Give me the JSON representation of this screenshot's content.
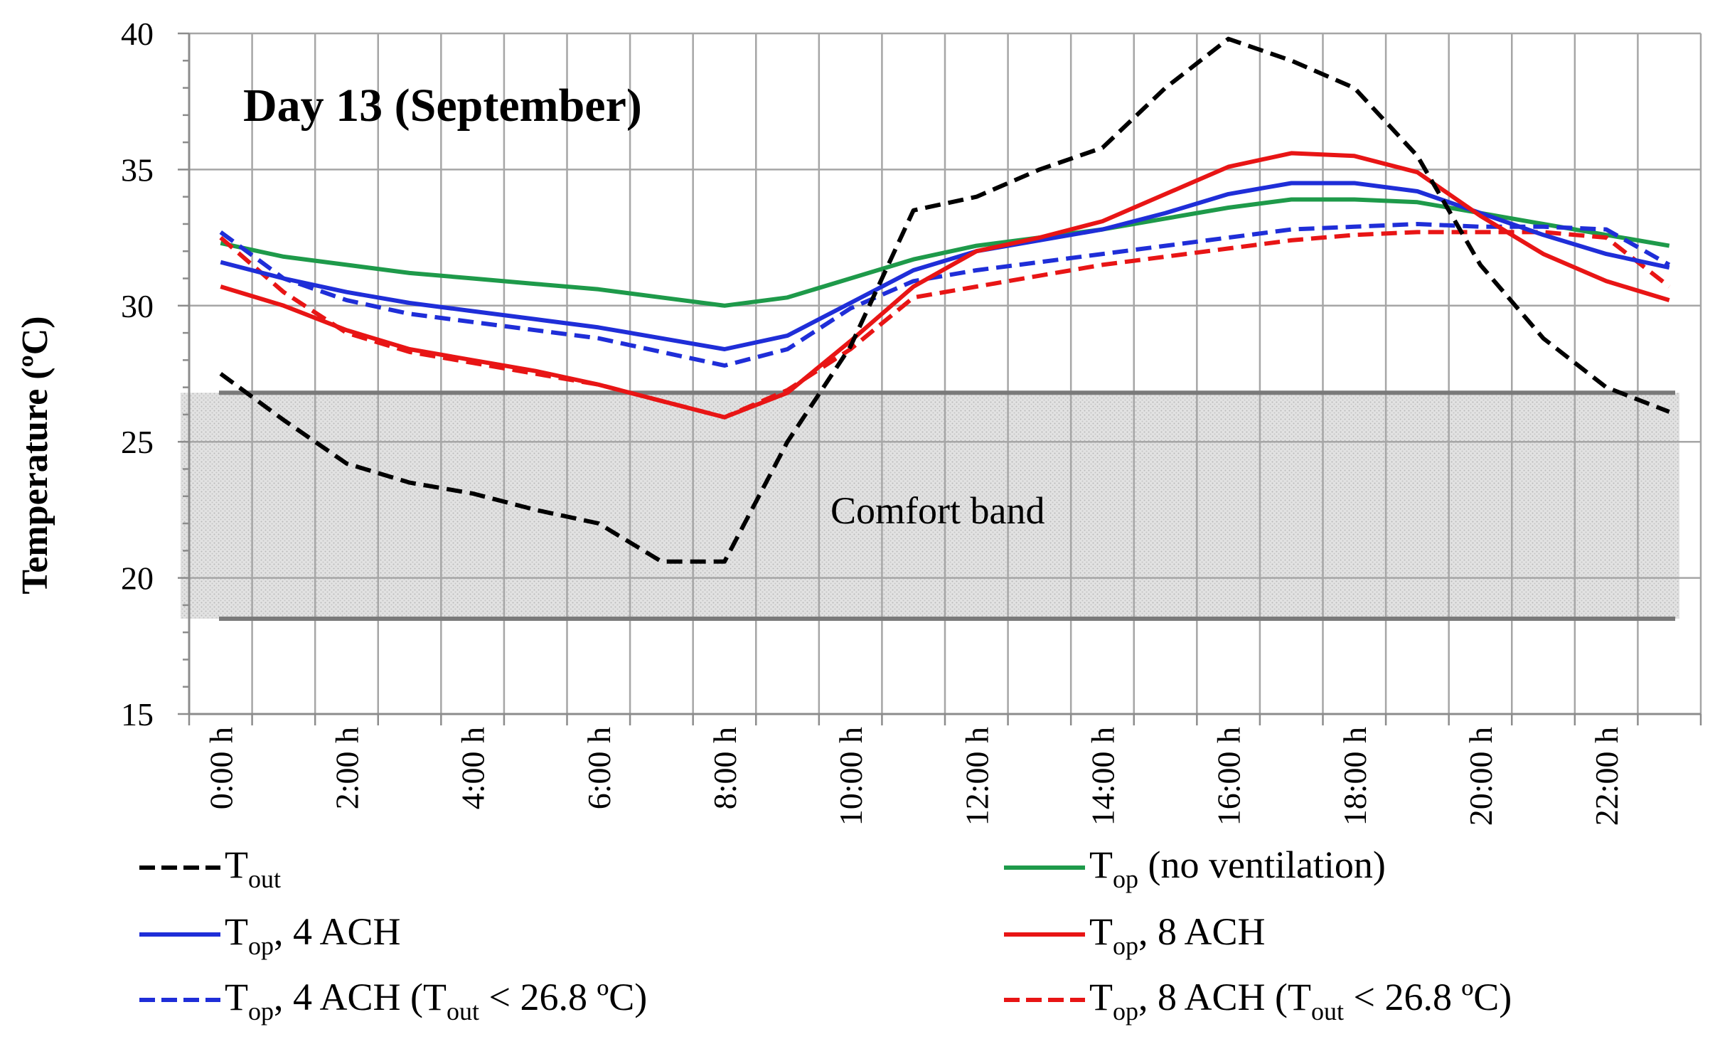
{
  "chart_data": {
    "type": "line",
    "title": "Day 13 (September)",
    "ylabel": "Temperature (ºC)",
    "xlabel": "",
    "ylim": [
      15,
      40
    ],
    "yticks": [
      "15",
      "20",
      "25",
      "30",
      "35",
      "40"
    ],
    "xtick_labels": [
      "0:00 h",
      "2:00 h",
      "4:00 h",
      "6:00 h",
      "8:00 h",
      "10:00 h",
      "12:00 h",
      "14:00 h",
      "16:00 h",
      "18:00 h",
      "20:00 h",
      "22:00 h"
    ],
    "grid": true,
    "comfort_band": {
      "label": "Comfort band",
      "lower": 18.5,
      "upper": 26.8
    },
    "x": [
      0,
      1,
      2,
      3,
      4,
      5,
      6,
      7,
      8,
      9,
      10,
      11,
      12,
      13,
      14,
      15,
      16,
      17,
      18,
      19,
      20,
      21,
      22,
      23
    ],
    "series": [
      {
        "id": "tout",
        "name": "T",
        "sub": "out",
        "suffix": "",
        "color": "#000000",
        "dash": "dashed",
        "values": [
          27.5,
          25.8,
          24.2,
          23.5,
          23.1,
          22.5,
          22.0,
          20.6,
          20.6,
          25.0,
          28.5,
          33.5,
          34.0,
          35.0,
          35.8,
          38.0,
          39.8,
          39.0,
          38.0,
          35.5,
          31.5,
          28.8,
          27.0,
          26.1
        ]
      },
      {
        "id": "nv",
        "name": "T",
        "sub": "op",
        "suffix": " (no ventilation)",
        "color": "#1e9a4a",
        "dash": "solid",
        "values": [
          32.3,
          31.8,
          31.5,
          31.2,
          31.0,
          30.8,
          30.6,
          30.3,
          30.0,
          30.3,
          31.0,
          31.7,
          32.2,
          32.5,
          32.8,
          33.2,
          33.6,
          33.9,
          33.9,
          33.8,
          33.4,
          33.0,
          32.6,
          32.2
        ]
      },
      {
        "id": "a4",
        "name": "T",
        "sub": "op",
        "suffix": ", 4 ACH",
        "color": "#1f2ed8",
        "dash": "solid",
        "values": [
          31.6,
          31.0,
          30.5,
          30.1,
          29.8,
          29.5,
          29.2,
          28.8,
          28.4,
          28.9,
          30.1,
          31.3,
          32.0,
          32.4,
          32.8,
          33.4,
          34.1,
          34.5,
          34.5,
          34.2,
          33.4,
          32.6,
          31.9,
          31.4
        ]
      },
      {
        "id": "a8",
        "name": "T",
        "sub": "op",
        "suffix": ", 8 ACH",
        "color": "#e81515",
        "dash": "solid",
        "values": [
          30.7,
          30.0,
          29.1,
          28.4,
          28.0,
          27.6,
          27.1,
          26.5,
          25.9,
          26.8,
          28.7,
          30.7,
          32.0,
          32.5,
          33.1,
          34.1,
          35.1,
          35.6,
          35.5,
          34.9,
          33.3,
          31.9,
          30.9,
          30.2
        ]
      },
      {
        "id": "a4c",
        "name": "T",
        "sub": "op",
        "suffix": ", 4 ACH (T",
        "sub2": "out",
        "suffix2": " < 26.8 ºC)",
        "color": "#1f2ed8",
        "dash": "dashed",
        "values": [
          32.7,
          31.0,
          30.2,
          29.7,
          29.4,
          29.1,
          28.8,
          28.3,
          27.8,
          28.4,
          29.9,
          30.9,
          31.3,
          31.6,
          31.9,
          32.2,
          32.5,
          32.8,
          32.9,
          33.0,
          32.9,
          32.9,
          32.8,
          31.5
        ]
      },
      {
        "id": "a8c",
        "name": "T",
        "sub": "op",
        "suffix": ", 8 ACH (T",
        "sub2": "out",
        "suffix2": " < 26.8 ºC)",
        "color": "#e81515",
        "dash": "dashed",
        "values": [
          32.5,
          30.5,
          29.0,
          28.3,
          27.9,
          27.5,
          27.1,
          26.5,
          25.9,
          26.9,
          28.4,
          30.3,
          30.7,
          31.1,
          31.5,
          31.8,
          32.1,
          32.4,
          32.6,
          32.7,
          32.7,
          32.7,
          32.5,
          30.7
        ]
      }
    ]
  }
}
